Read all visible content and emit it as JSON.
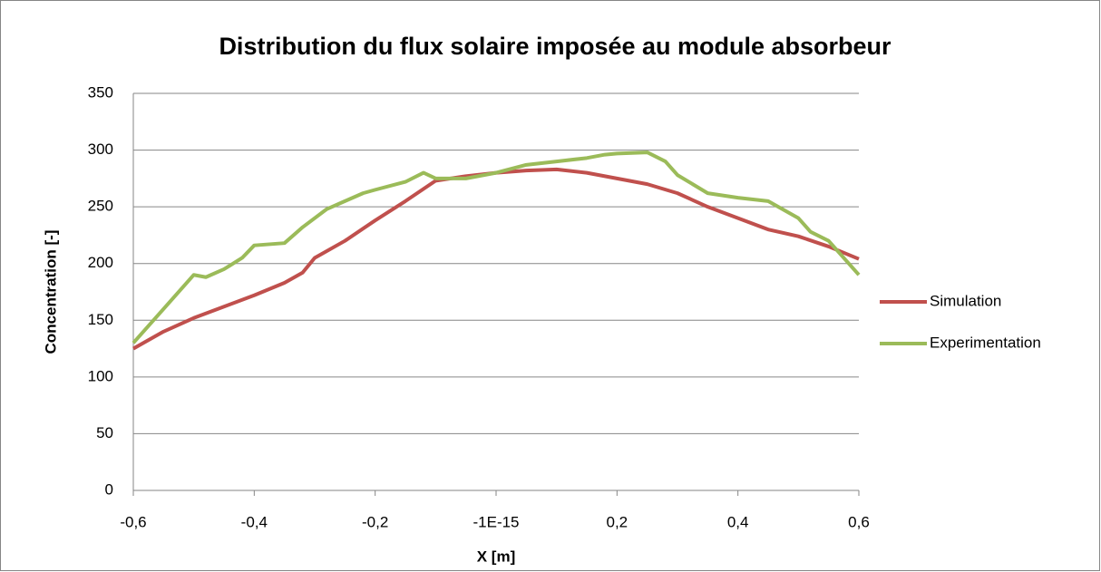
{
  "chart_data": {
    "type": "line",
    "title": "Distribution du flux solaire imposée au module absorbeur",
    "x_label": "X [m]",
    "y_label": "Concentration [-]",
    "xlim": [
      -0.6,
      0.6
    ],
    "xticks": [
      {
        "value": -0.6,
        "label": "-0,6"
      },
      {
        "value": -0.4,
        "label": "-0,4"
      },
      {
        "value": -0.2,
        "label": "-0,2"
      },
      {
        "value": -1e-15,
        "label": "-1E-15"
      },
      {
        "value": 0.2,
        "label": "0,2"
      },
      {
        "value": 0.4,
        "label": "0,4"
      },
      {
        "value": 0.6,
        "label": "0,6"
      }
    ],
    "ylim": [
      0,
      350
    ],
    "yticks": [
      0,
      50,
      100,
      150,
      200,
      250,
      300,
      350
    ],
    "grid": true,
    "legend": "right",
    "series": [
      {
        "name": "Simulation",
        "color": "#c0504d",
        "x": [
          -0.6,
          -0.55,
          -0.5,
          -0.45,
          -0.4,
          -0.35,
          -0.32,
          -0.3,
          -0.25,
          -0.2,
          -0.15,
          -0.1,
          -0.05,
          0,
          0.05,
          0.1,
          0.15,
          0.2,
          0.25,
          0.3,
          0.35,
          0.4,
          0.45,
          0.5,
          0.55,
          0.6
        ],
        "values": [
          125,
          140,
          152,
          162,
          172,
          183,
          192,
          205,
          220,
          238,
          255,
          273,
          277,
          280,
          282,
          283,
          280,
          275,
          270,
          262,
          250,
          240,
          230,
          224,
          215,
          204
        ]
      },
      {
        "name": "Experimentation",
        "color": "#9bbb59",
        "x": [
          -0.6,
          -0.55,
          -0.5,
          -0.48,
          -0.45,
          -0.42,
          -0.4,
          -0.35,
          -0.32,
          -0.28,
          -0.25,
          -0.22,
          -0.2,
          -0.15,
          -0.12,
          -0.1,
          -0.05,
          0,
          0.05,
          0.1,
          0.15,
          0.18,
          0.2,
          0.25,
          0.28,
          0.3,
          0.35,
          0.4,
          0.45,
          0.5,
          0.52,
          0.55,
          0.6
        ],
        "values": [
          130,
          160,
          190,
          188,
          195,
          205,
          216,
          218,
          232,
          248,
          255,
          262,
          265,
          272,
          280,
          275,
          275,
          280,
          287,
          290,
          293,
          296,
          297,
          298,
          290,
          278,
          262,
          258,
          255,
          240,
          228,
          220,
          190
        ]
      }
    ]
  }
}
